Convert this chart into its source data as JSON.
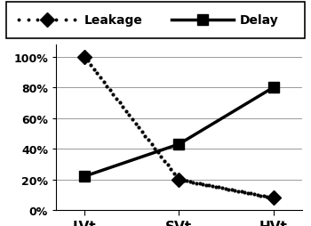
{
  "categories": [
    "LVt",
    "SVt",
    "HVt"
  ],
  "leakage": [
    1.0,
    0.2,
    0.08
  ],
  "delay": [
    0.22,
    0.43,
    0.8
  ],
  "leakage_label": "Leakage",
  "delay_label": "Delay",
  "leakage_color": "#000000",
  "delay_color": "#000000",
  "ylim": [
    0,
    1.08
  ],
  "yticks": [
    0,
    0.2,
    0.4,
    0.6,
    0.8,
    1.0
  ],
  "ytick_labels": [
    "0%",
    "20%",
    "40%",
    "60%",
    "80%",
    "100%"
  ],
  "background_color": "#ffffff",
  "grid_color": "#999999",
  "leakage_dotsize": 4,
  "delay_linewidth": 2.5,
  "delay_markersize": 9
}
